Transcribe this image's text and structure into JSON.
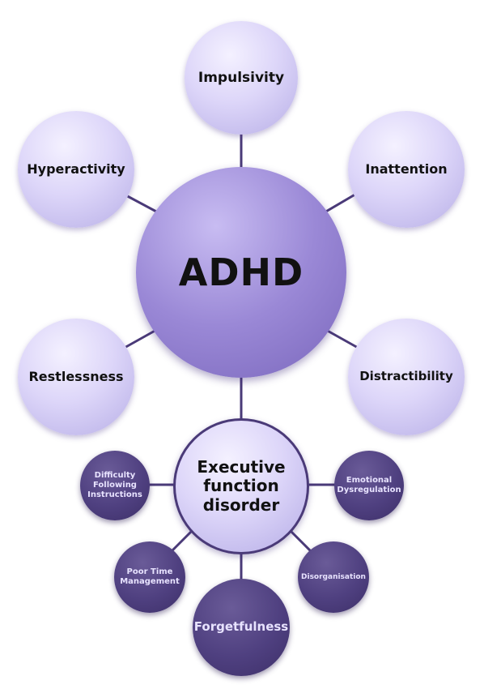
{
  "center": {
    "label": "ADHD"
  },
  "symptoms": [
    {
      "label": "Impulsivity"
    },
    {
      "label": "Hyperactivity"
    },
    {
      "label": "Inattention"
    },
    {
      "label": "Restlessness"
    },
    {
      "label": "Distractibility"
    }
  ],
  "executive": {
    "label_lines": [
      "Executive",
      "function",
      "disorder"
    ],
    "items": [
      {
        "label_lines": [
          "Difficulty",
          "Following",
          "Instructions"
        ]
      },
      {
        "label_lines": [
          "Emotional",
          "Dysregulation"
        ]
      },
      {
        "label_lines": [
          "Poor Time",
          "Management"
        ]
      },
      {
        "label_lines": [
          "Disorganisation"
        ]
      },
      {
        "label_lines": [
          "Forgetfulness"
        ]
      }
    ]
  },
  "colors": {
    "connector": "#4a3a78",
    "light_node": "#ddd6f9",
    "center_node": "#8f7dcf",
    "dark_node": "#4f4080"
  }
}
